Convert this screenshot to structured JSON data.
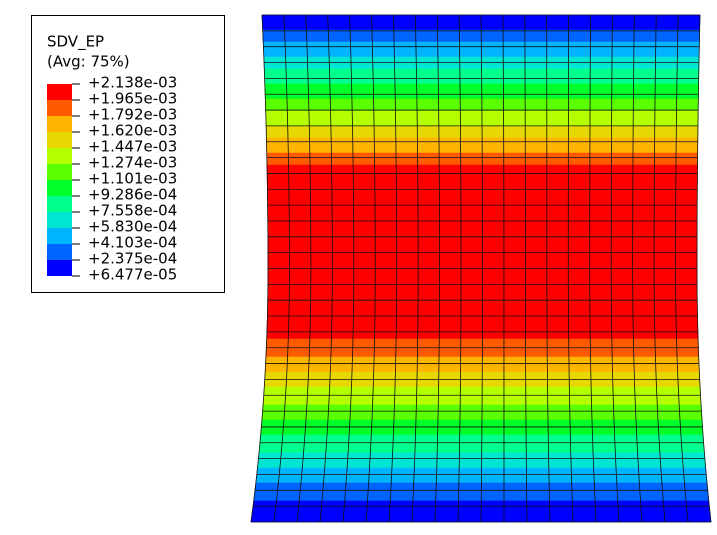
{
  "legend": {
    "title": "SDV_EP",
    "subtitle": "(Avg: 75%)",
    "labels": [
      "+2.138e-03",
      "+1.965e-03",
      "+1.792e-03",
      "+1.620e-03",
      "+1.447e-03",
      "+1.274e-03",
      "+1.101e-03",
      "+9.286e-04",
      "+7.558e-04",
      "+5.830e-04",
      "+4.103e-04",
      "+2.375e-04",
      "+6.477e-05"
    ],
    "colors": [
      "#ff0000",
      "#ff5a00",
      "#ffb400",
      "#e6d800",
      "#b4ff00",
      "#5aff00",
      "#00ff28",
      "#00ff8c",
      "#00e6d2",
      "#00b4ff",
      "#0064ff",
      "#0000ff"
    ]
  }
}
